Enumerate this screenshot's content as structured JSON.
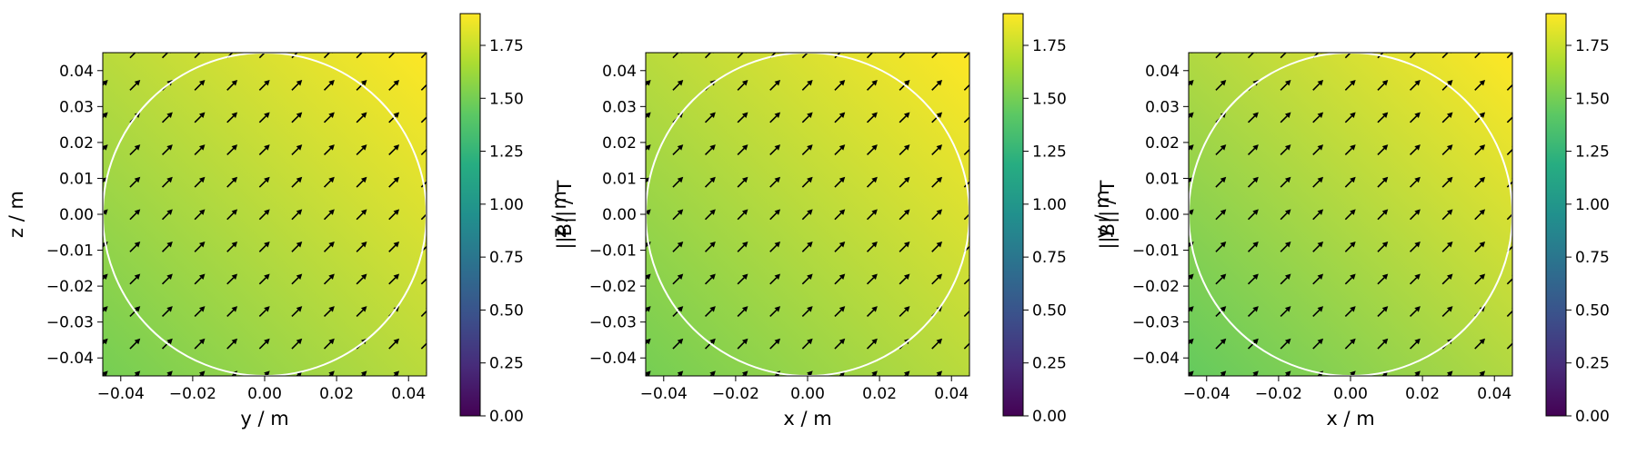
{
  "chart_data": [
    {
      "type": "heatmap",
      "title": "",
      "xlabel": "y / m",
      "ylabel": "z / m",
      "xlim": [
        -0.045,
        0.045
      ],
      "ylim": [
        -0.045,
        0.045
      ],
      "xticks": [
        "−0.04",
        "−0.02",
        "0.00",
        "0.02",
        "0.04"
      ],
      "yticks": [
        "−0.04",
        "−0.03",
        "−0.02",
        "−0.01",
        "0.00",
        "0.01",
        "0.02",
        "0.03",
        "0.04"
      ],
      "field": {
        "quantity": "||B||",
        "unit": "T",
        "min_corner": "bottom-left",
        "max_corner": "top-right",
        "min_value": 1.5,
        "max_value": 1.9,
        "vector_direction": "up-right"
      },
      "circle": {
        "center": [
          0.0,
          0.0
        ],
        "radius": 0.045,
        "color": "#ffffff"
      },
      "colorbar": {
        "label": "||B|| / T",
        "range": [
          0.0,
          1.9
        ],
        "ticks": [
          "0.00",
          "0.25",
          "0.50",
          "0.75",
          "1.00",
          "1.25",
          "1.50",
          "1.75"
        ],
        "colormap": "viridis"
      }
    },
    {
      "type": "heatmap",
      "title": "",
      "xlabel": "x / m",
      "ylabel": "z / m",
      "xlim": [
        -0.045,
        0.045
      ],
      "ylim": [
        -0.045,
        0.045
      ],
      "xticks": [
        "−0.04",
        "−0.02",
        "0.00",
        "0.02",
        "0.04"
      ],
      "yticks": [
        "−0.04",
        "−0.03",
        "−0.02",
        "−0.01",
        "0.00",
        "0.01",
        "0.02",
        "0.03",
        "0.04"
      ],
      "field": {
        "quantity": "||B||",
        "unit": "T",
        "min_corner": "bottom-left",
        "max_corner": "top-right",
        "min_value": 1.5,
        "max_value": 1.9,
        "vector_direction": "up-right"
      },
      "circle": {
        "center": [
          0.0,
          0.0
        ],
        "radius": 0.045,
        "color": "#ffffff"
      },
      "colorbar": {
        "label": "||B|| / T",
        "range": [
          0.0,
          1.9
        ],
        "ticks": [
          "0.00",
          "0.25",
          "0.50",
          "0.75",
          "1.00",
          "1.25",
          "1.50",
          "1.75"
        ],
        "colormap": "viridis"
      }
    },
    {
      "type": "heatmap",
      "title": "",
      "xlabel": "x / m",
      "ylabel": "y / m",
      "xlim": [
        -0.045,
        0.045
      ],
      "ylim": [
        -0.045,
        0.045
      ],
      "xticks": [
        "−0.04",
        "−0.02",
        "0.00",
        "0.02",
        "0.04"
      ],
      "yticks": [
        "−0.04",
        "−0.03",
        "−0.02",
        "−0.01",
        "0.00",
        "0.01",
        "0.02",
        "0.03",
        "0.04"
      ],
      "field": {
        "quantity": "||B||",
        "unit": "T",
        "min_corner": "bottom-left",
        "max_corner": "top-right",
        "min_value": 1.45,
        "max_value": 1.9,
        "vector_direction": "up-right"
      },
      "circle": {
        "center": [
          0.0,
          0.0
        ],
        "radius": 0.045,
        "color": "#ffffff"
      },
      "colorbar": {
        "label": "||B|| / T",
        "range": [
          0.0,
          1.9
        ],
        "ticks": [
          "0.00",
          "0.25",
          "0.50",
          "0.75",
          "1.00",
          "1.25",
          "1.50",
          "1.75"
        ],
        "colormap": "viridis"
      }
    }
  ]
}
